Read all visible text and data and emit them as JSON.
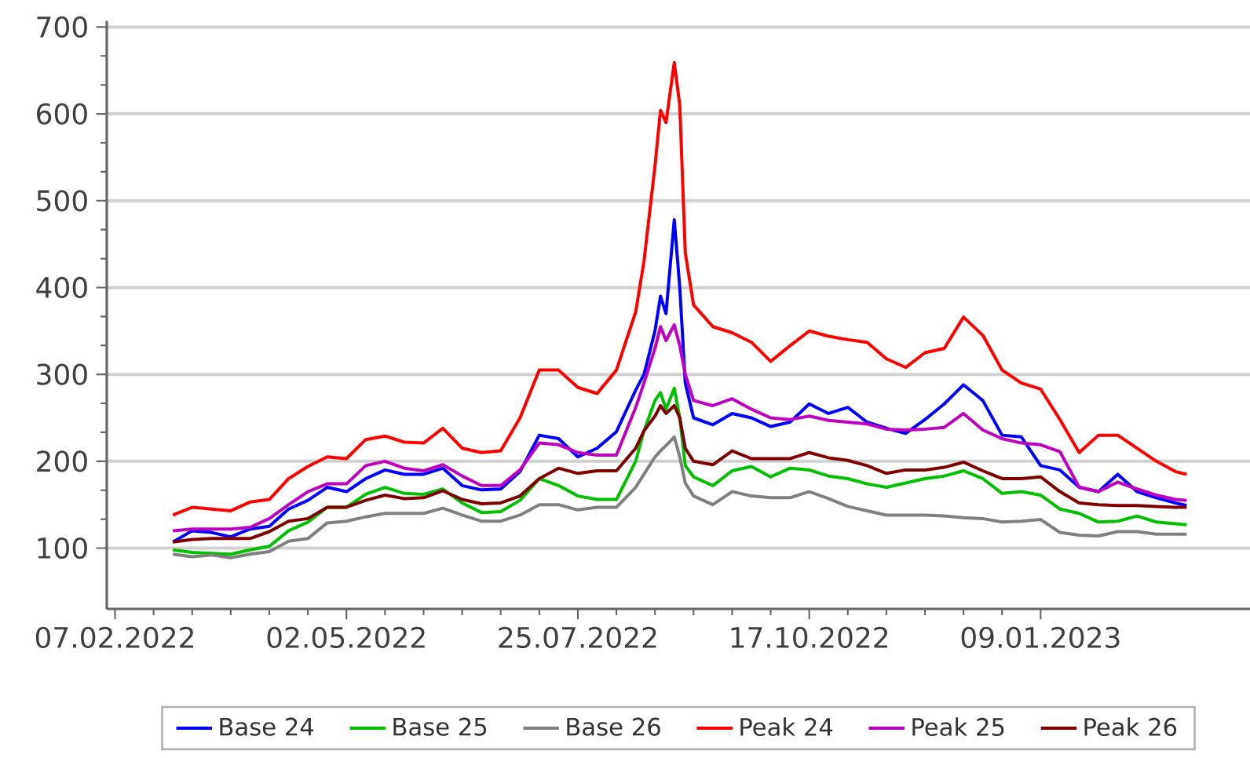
{
  "chart_data": {
    "type": "line",
    "x": [
      "2022-02-28",
      "2022-03-07",
      "2022-03-14",
      "2022-03-21",
      "2022-03-28",
      "2022-04-04",
      "2022-04-11",
      "2022-04-18",
      "2022-04-25",
      "2022-05-02",
      "2022-05-09",
      "2022-05-16",
      "2022-05-23",
      "2022-05-30",
      "2022-06-06",
      "2022-06-13",
      "2022-06-20",
      "2022-06-27",
      "2022-07-04",
      "2022-07-11",
      "2022-07-18",
      "2022-07-25",
      "2022-08-01",
      "2022-08-08",
      "2022-08-15",
      "2022-08-18",
      "2022-08-22",
      "2022-08-24",
      "2022-08-26",
      "2022-08-29",
      "2022-08-31",
      "2022-09-02",
      "2022-09-05",
      "2022-09-12",
      "2022-09-19",
      "2022-09-26",
      "2022-10-03",
      "2022-10-10",
      "2022-10-17",
      "2022-10-24",
      "2022-10-31",
      "2022-11-07",
      "2022-11-14",
      "2022-11-21",
      "2022-11-28",
      "2022-12-05",
      "2022-12-12",
      "2022-12-19",
      "2022-12-26",
      "2023-01-02",
      "2023-01-09",
      "2023-01-16",
      "2023-01-23",
      "2023-01-30",
      "2023-02-06",
      "2023-02-13",
      "2023-02-20",
      "2023-02-27",
      "2023-03-03"
    ],
    "series": [
      {
        "name": "Base 24",
        "color": "#0000ff",
        "values": [
          107,
          120,
          118,
          113,
          122,
          125,
          145,
          155,
          170,
          165,
          180,
          190,
          185,
          185,
          192,
          172,
          167,
          168,
          188,
          230,
          226,
          205,
          215,
          234,
          282,
          300,
          350,
          390,
          370,
          478,
          400,
          290,
          250,
          242,
          255,
          250,
          240,
          245,
          266,
          255,
          262,
          245,
          238,
          232,
          248,
          266,
          288,
          270,
          230,
          228,
          195,
          190,
          170,
          165,
          185,
          165,
          158,
          152,
          149
        ]
      },
      {
        "name": "Base 25",
        "color": "#00c000",
        "values": [
          98,
          95,
          94,
          93,
          98,
          102,
          120,
          130,
          147,
          147,
          162,
          170,
          163,
          162,
          168,
          152,
          141,
          142,
          155,
          180,
          172,
          160,
          156,
          156,
          200,
          235,
          270,
          279,
          260,
          284,
          250,
          195,
          182,
          172,
          189,
          194,
          182,
          192,
          190,
          183,
          180,
          174,
          170,
          175,
          180,
          183,
          189,
          180,
          163,
          165,
          161,
          145,
          140,
          130,
          131,
          137,
          130,
          128,
          127
        ]
      },
      {
        "name": "Base 26",
        "color": "#808080",
        "values": [
          93,
          90,
          92,
          89,
          93,
          96,
          108,
          111,
          129,
          131,
          136,
          140,
          140,
          140,
          146,
          138,
          131,
          131,
          138,
          150,
          150,
          144,
          147,
          147,
          170,
          185,
          205,
          212,
          218,
          228,
          205,
          175,
          160,
          150,
          165,
          160,
          158,
          158,
          165,
          157,
          148,
          143,
          138,
          138,
          138,
          137,
          135,
          134,
          130,
          131,
          133,
          118,
          115,
          114,
          119,
          119,
          116,
          116,
          116
        ]
      },
      {
        "name": "Peak 24",
        "color": "#ff0000",
        "values": [
          138,
          147,
          145,
          143,
          153,
          156,
          180,
          194,
          205,
          203,
          225,
          229,
          222,
          221,
          238,
          215,
          210,
          212,
          250,
          305,
          305,
          285,
          278,
          305,
          372,
          430,
          540,
          604,
          590,
          659,
          610,
          440,
          380,
          355,
          348,
          337,
          315,
          333,
          350,
          344,
          340,
          337,
          318,
          308,
          325,
          330,
          366,
          345,
          305,
          290,
          283,
          248,
          210,
          230,
          230,
          215,
          200,
          188,
          185
        ]
      },
      {
        "name": "Peak 25",
        "color": "#c000c0",
        "values": [
          120,
          122,
          122,
          122,
          124,
          134,
          150,
          165,
          174,
          174,
          195,
          200,
          192,
          189,
          196,
          183,
          172,
          172,
          190,
          221,
          219,
          210,
          207,
          207,
          262,
          290,
          330,
          355,
          339,
          357,
          333,
          300,
          270,
          264,
          272,
          260,
          250,
          248,
          252,
          247,
          245,
          243,
          237,
          236,
          237,
          239,
          255,
          236,
          226,
          221,
          219,
          211,
          170,
          165,
          176,
          168,
          161,
          156,
          155
        ]
      },
      {
        "name": "Peak 26",
        "color": "#800000",
        "values": [
          107,
          110,
          111,
          111,
          111,
          119,
          131,
          134,
          147,
          147,
          155,
          161,
          157,
          158,
          166,
          156,
          151,
          152,
          160,
          180,
          192,
          186,
          189,
          189,
          215,
          235,
          252,
          264,
          255,
          264,
          250,
          215,
          200,
          196,
          212,
          203,
          203,
          203,
          210,
          204,
          201,
          195,
          186,
          190,
          190,
          193,
          199,
          189,
          180,
          180,
          182,
          165,
          152,
          150,
          149,
          149,
          148,
          147,
          147
        ]
      }
    ],
    "xlim": [
      "2022-02-04",
      "2023-03-26"
    ],
    "xticks": [
      {
        "value": "2022-02-07",
        "label": "07.02.2022"
      },
      {
        "value": "2022-05-02",
        "label": "02.05.2022"
      },
      {
        "value": "2022-07-25",
        "label": "25.07.2022"
      },
      {
        "value": "2022-10-17",
        "label": "17.10.2022"
      },
      {
        "value": "2023-01-09",
        "label": "09.01.2023"
      }
    ],
    "ylim": [
      30,
      707
    ],
    "yticks": [
      100,
      200,
      300,
      400,
      500,
      600,
      700
    ],
    "grid": "y",
    "legend": "bottom",
    "marker": "none",
    "line_style": "solid"
  }
}
